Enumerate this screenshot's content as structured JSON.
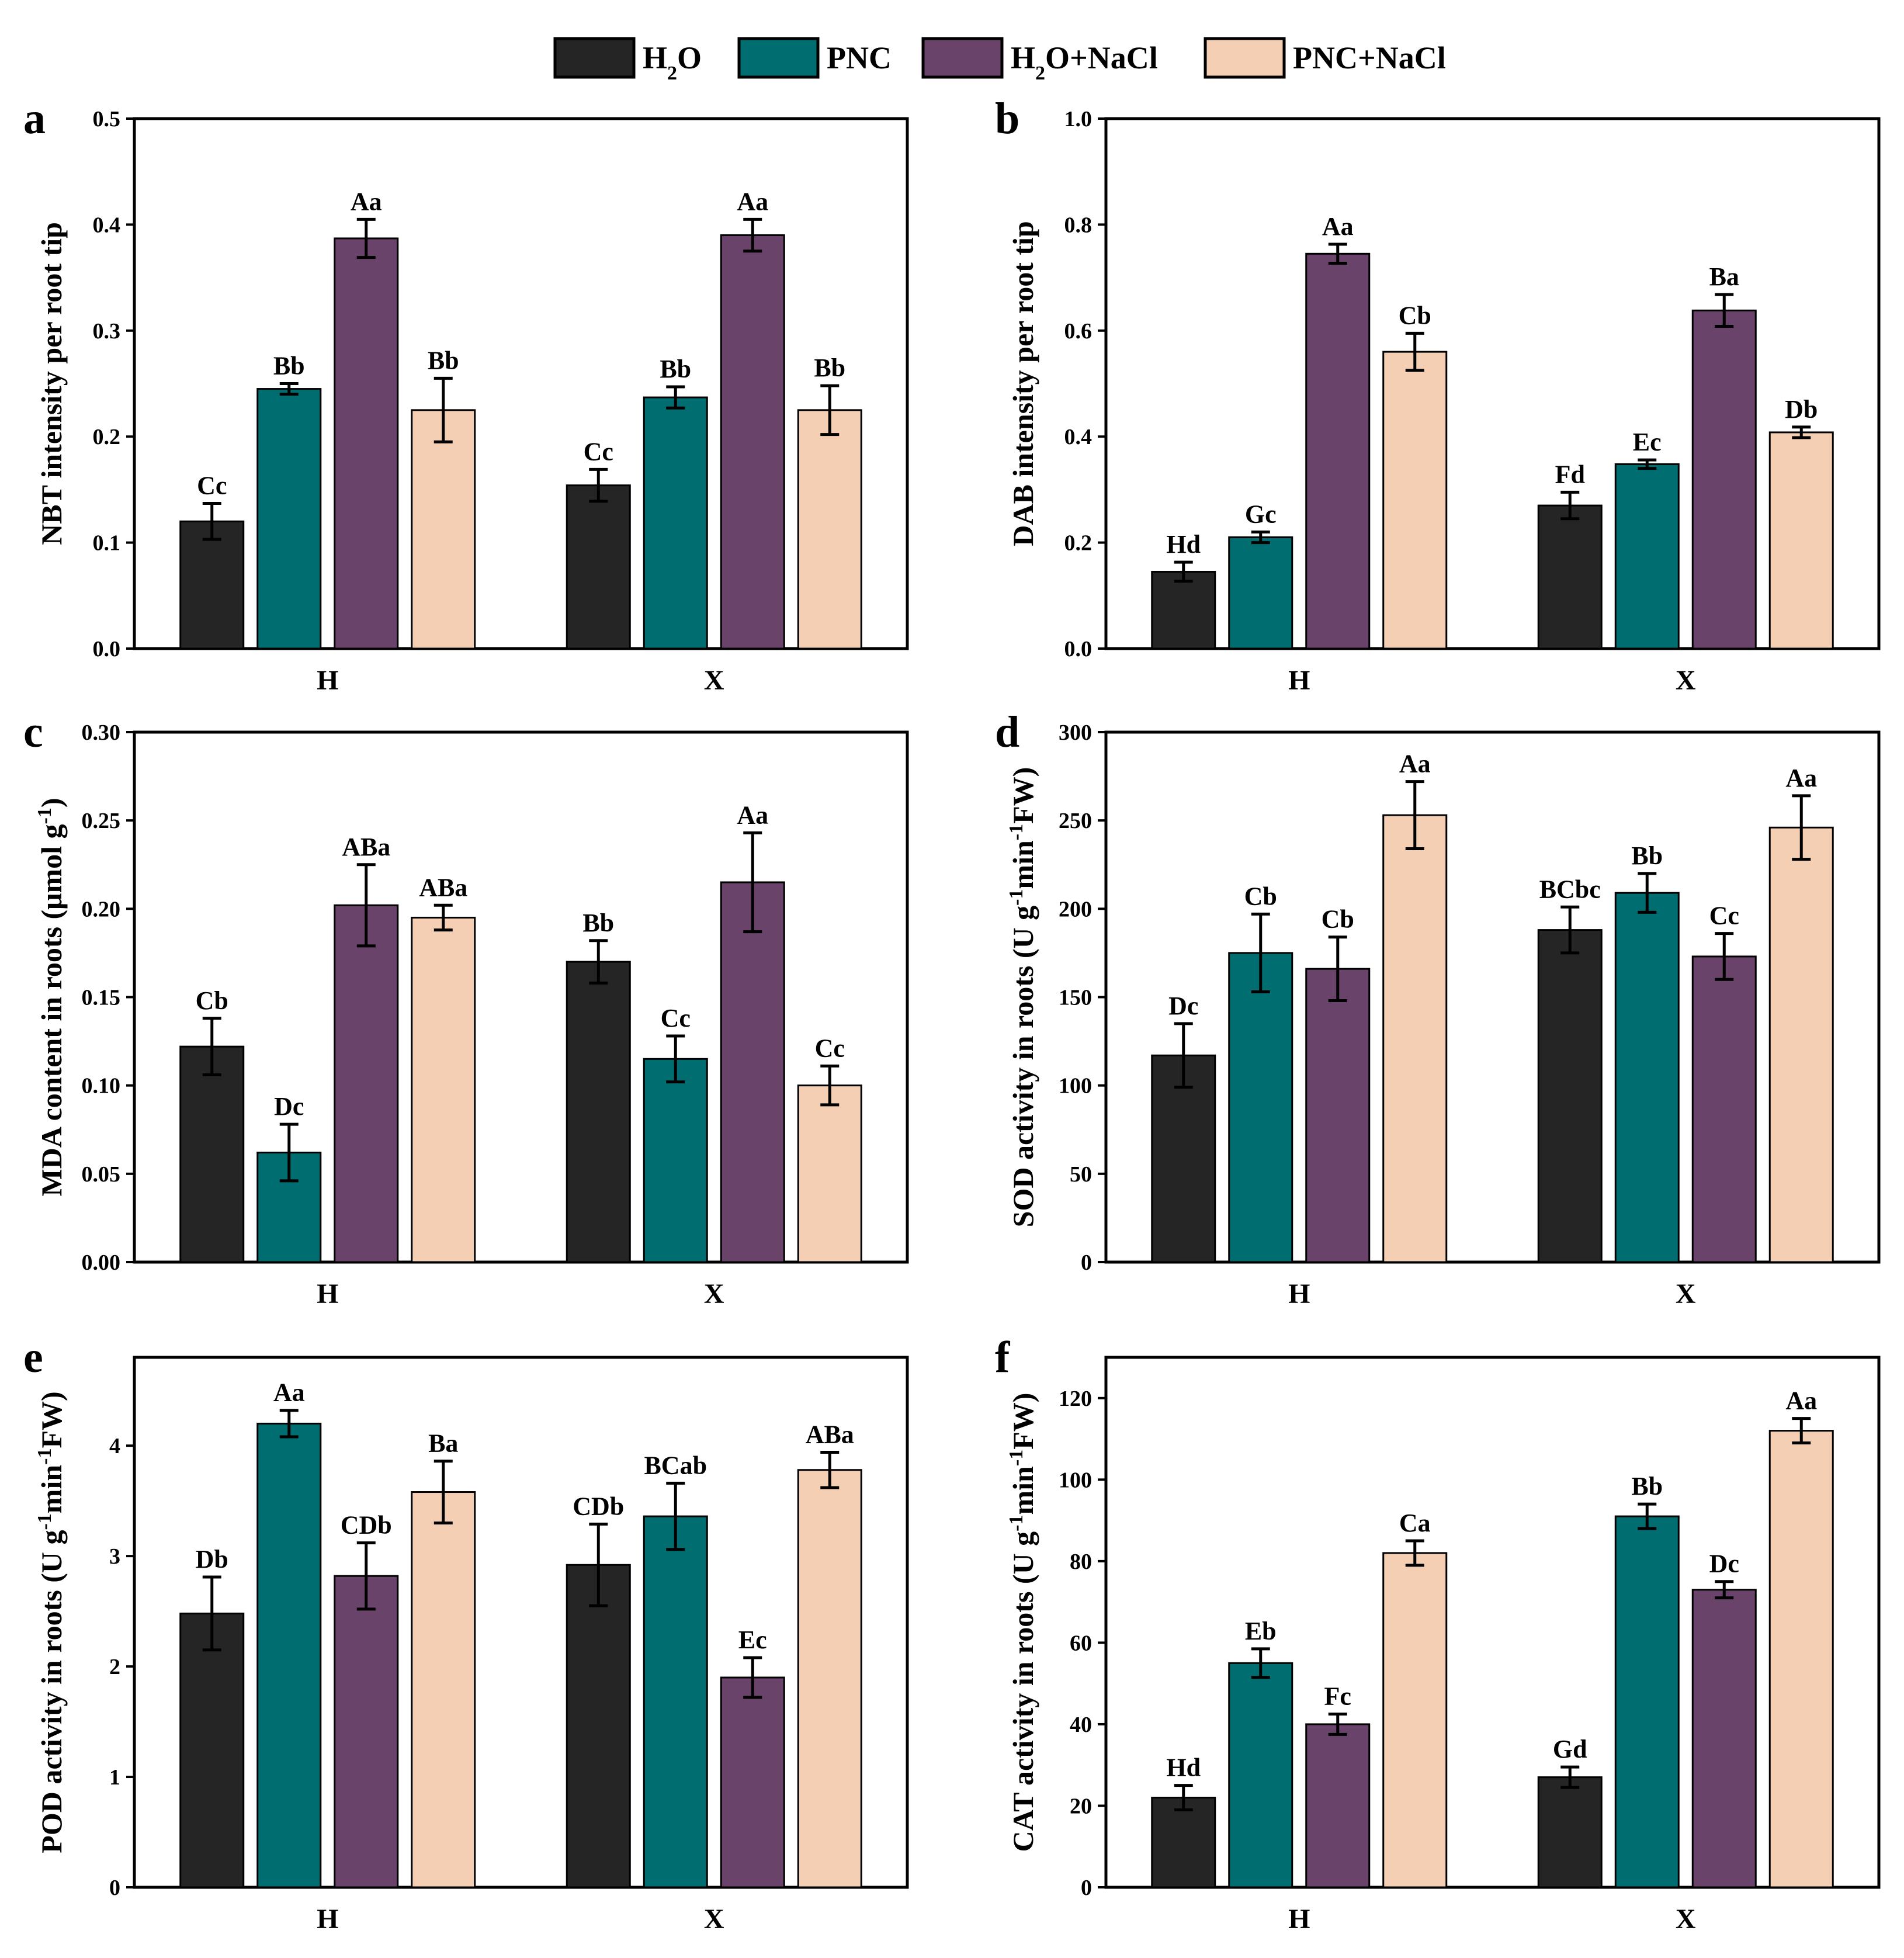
{
  "legend": [
    {
      "label_html": "H<tspan baseline-shift=\"sub\" font-size=\"34\">2</tspan>O",
      "label": "H2O",
      "color": "#252525"
    },
    {
      "label": "PNC",
      "color": "#006d70"
    },
    {
      "label_html": "H<tspan baseline-shift=\"sub\" font-size=\"34\">2</tspan>O+NaCl",
      "label": "H2O+NaCl",
      "color": "#6a436a"
    },
    {
      "label": "PNC+NaCl",
      "color": "#f4cfb4"
    }
  ],
  "chart_data": [
    {
      "panel": "a",
      "type": "bar",
      "ylabel": "NBT intensity per root tip",
      "ylim": [
        0,
        0.5
      ],
      "yticks": [
        0.0,
        0.1,
        0.2,
        0.3,
        0.4,
        0.5
      ],
      "ytick_fmt": 1,
      "categories": [
        "H",
        "X"
      ],
      "series": [
        {
          "name": "H2O",
          "values": [
            0.12,
            0.154
          ],
          "errors": [
            0.017,
            0.015
          ],
          "letters": [
            "Cc",
            "Cc"
          ]
        },
        {
          "name": "PNC",
          "values": [
            0.245,
            0.237
          ],
          "errors": [
            0.005,
            0.01
          ],
          "letters": [
            "Bb",
            "Bb"
          ]
        },
        {
          "name": "H2O+NaCl",
          "values": [
            0.387,
            0.39
          ],
          "errors": [
            0.018,
            0.015
          ],
          "letters": [
            "Aa",
            "Aa"
          ]
        },
        {
          "name": "PNC+NaCl",
          "values": [
            0.225,
            0.225
          ],
          "errors": [
            0.03,
            0.023
          ],
          "letters": [
            "Bb",
            "Bb"
          ]
        }
      ]
    },
    {
      "panel": "b",
      "type": "bar",
      "ylabel": "DAB intensity per root tip",
      "ylim": [
        0,
        1.0
      ],
      "yticks": [
        0.0,
        0.2,
        0.4,
        0.6,
        0.8,
        1.0
      ],
      "ytick_fmt": 1,
      "categories": [
        "H",
        "X"
      ],
      "series": [
        {
          "name": "H2O",
          "values": [
            0.145,
            0.27
          ],
          "errors": [
            0.018,
            0.025
          ],
          "letters": [
            "Hd",
            "Fd"
          ]
        },
        {
          "name": "PNC",
          "values": [
            0.21,
            0.348
          ],
          "errors": [
            0.01,
            0.008
          ],
          "letters": [
            "Gc",
            "Ec"
          ]
        },
        {
          "name": "H2O+NaCl",
          "values": [
            0.745,
            0.638
          ],
          "errors": [
            0.018,
            0.03
          ],
          "letters": [
            "Aa",
            "Ba"
          ]
        },
        {
          "name": "PNC+NaCl",
          "values": [
            0.56,
            0.408
          ],
          "errors": [
            0.035,
            0.01
          ],
          "letters": [
            "Cb",
            "Db"
          ]
        }
      ]
    },
    {
      "panel": "c",
      "type": "bar",
      "ylabel_parts": [
        "MDA content in roots (μmol g",
        "-1",
        ")"
      ],
      "ylim": [
        0,
        0.3
      ],
      "yticks": [
        0.0,
        0.05,
        0.1,
        0.15,
        0.2,
        0.25,
        0.3
      ],
      "ytick_fmt": 2,
      "categories": [
        "H",
        "X"
      ],
      "series": [
        {
          "name": "H2O",
          "values": [
            0.122,
            0.17
          ],
          "errors": [
            0.016,
            0.012
          ],
          "letters": [
            "Cb",
            "Bb"
          ]
        },
        {
          "name": "PNC",
          "values": [
            0.062,
            0.115
          ],
          "errors": [
            0.016,
            0.013
          ],
          "letters": [
            "Dc",
            "Cc"
          ]
        },
        {
          "name": "H2O+NaCl",
          "values": [
            0.202,
            0.215
          ],
          "errors": [
            0.023,
            0.028
          ],
          "letters": [
            "ABa",
            "Aa"
          ]
        },
        {
          "name": "PNC+NaCl",
          "values": [
            0.195,
            0.1
          ],
          "errors": [
            0.007,
            0.011
          ],
          "letters": [
            "ABa",
            "Cc"
          ]
        }
      ]
    },
    {
      "panel": "d",
      "type": "bar",
      "ylabel_parts": [
        "SOD activity in roots (U g",
        "-1",
        "min",
        "-1",
        "FW)"
      ],
      "ylim": [
        0,
        300
      ],
      "yticks": [
        0,
        50,
        100,
        150,
        200,
        250,
        300
      ],
      "ytick_fmt": 0,
      "categories": [
        "H",
        "X"
      ],
      "series": [
        {
          "name": "H2O",
          "values": [
            117,
            188
          ],
          "errors": [
            18,
            13
          ],
          "letters": [
            "Dc",
            "BCbc"
          ]
        },
        {
          "name": "PNC",
          "values": [
            175,
            209
          ],
          "errors": [
            22,
            11
          ],
          "letters": [
            "Cb",
            "Bb"
          ]
        },
        {
          "name": "H2O+NaCl",
          "values": [
            166,
            173
          ],
          "errors": [
            18,
            13
          ],
          "letters": [
            "Cb",
            "Cc"
          ]
        },
        {
          "name": "PNC+NaCl",
          "values": [
            253,
            246
          ],
          "errors": [
            19,
            18
          ],
          "letters": [
            "Aa",
            "Aa"
          ]
        }
      ]
    },
    {
      "panel": "e",
      "type": "bar",
      "ylabel_parts": [
        "POD activity in roots (U g",
        "-1",
        "min",
        "-1",
        "FW)"
      ],
      "ylim": [
        0,
        4.8
      ],
      "yticks": [
        0,
        1,
        2,
        3,
        4
      ],
      "ytick_fmt": 0,
      "categories": [
        "H",
        "X"
      ],
      "series": [
        {
          "name": "H2O",
          "values": [
            2.48,
            2.92
          ],
          "errors": [
            0.33,
            0.37
          ],
          "letters": [
            "Db",
            "CDb"
          ]
        },
        {
          "name": "PNC",
          "values": [
            4.2,
            3.36
          ],
          "errors": [
            0.12,
            0.3
          ],
          "letters": [
            "Aa",
            "BCab"
          ]
        },
        {
          "name": "H2O+NaCl",
          "values": [
            2.82,
            1.9
          ],
          "errors": [
            0.3,
            0.18
          ],
          "letters": [
            "CDb",
            "Ec"
          ]
        },
        {
          "name": "PNC+NaCl",
          "values": [
            3.58,
            3.78
          ],
          "errors": [
            0.28,
            0.16
          ],
          "letters": [
            "Ba",
            "ABa"
          ]
        }
      ]
    },
    {
      "panel": "f",
      "type": "bar",
      "ylabel_parts": [
        "CAT activity in roots (U g",
        "-1",
        "min",
        "-1",
        "FW)"
      ],
      "ylim": [
        0,
        130
      ],
      "yticks": [
        0,
        20,
        40,
        60,
        80,
        100,
        120
      ],
      "ytick_fmt": 0,
      "categories": [
        "H",
        "X"
      ],
      "series": [
        {
          "name": "H2O",
          "values": [
            22,
            27
          ],
          "errors": [
            3,
            2.5
          ],
          "letters": [
            "Hd",
            "Gd"
          ]
        },
        {
          "name": "PNC",
          "values": [
            55,
            91
          ],
          "errors": [
            3.5,
            3
          ],
          "letters": [
            "Eb",
            "Bb"
          ]
        },
        {
          "name": "H2O+NaCl",
          "values": [
            40,
            73
          ],
          "errors": [
            2.5,
            2
          ],
          "letters": [
            "Fc",
            "Dc"
          ]
        },
        {
          "name": "PNC+NaCl",
          "values": [
            82,
            112
          ],
          "errors": [
            3,
            3
          ],
          "letters": [
            "Ca",
            "Aa"
          ]
        }
      ]
    }
  ]
}
